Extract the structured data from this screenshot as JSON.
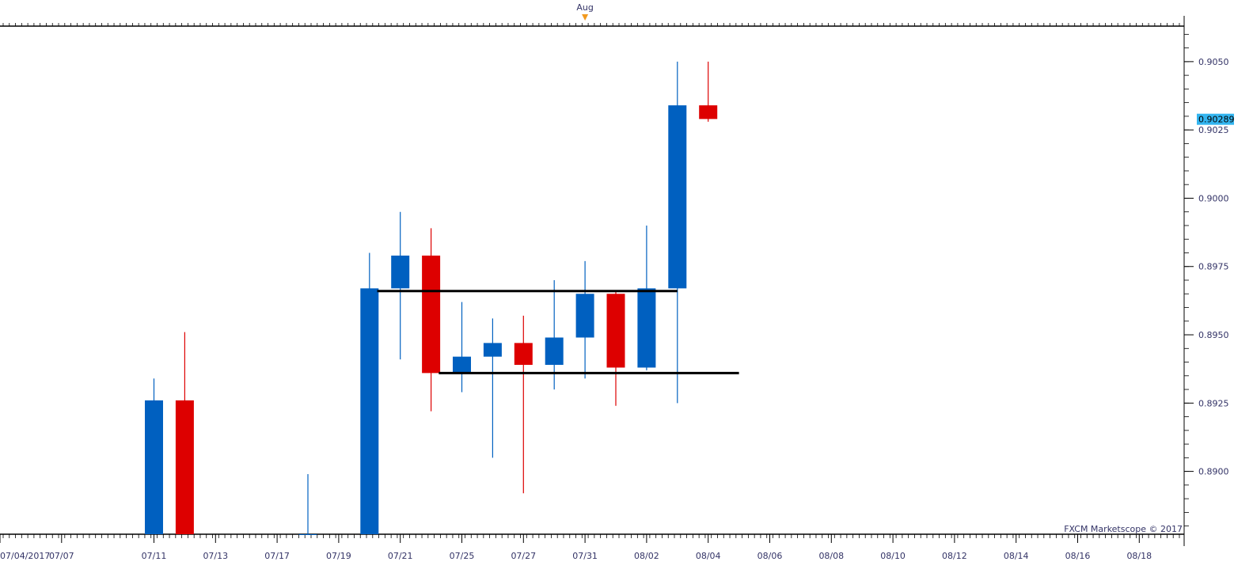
{
  "top_bar": {
    "month_marker": "Aug"
  },
  "price_label": "0.90289",
  "watermark": "FXCM Marketscope © 2017",
  "colors": {
    "bull": "#0060c0",
    "bear": "#dd0000",
    "price_label_bg": "#33b5f0",
    "axis_text": "#333366",
    "month_marker": "#f29a1f",
    "line": "#000000"
  },
  "chart_data": {
    "type": "candlestick",
    "instrument_note": "",
    "ylim": [
      0.8877,
      0.9063
    ],
    "y_ticks": [
      "0.9050",
      "0.9025",
      "0.9000",
      "0.8975",
      "0.8950",
      "0.8925",
      "0.8900"
    ],
    "x_labels": [
      "07/04/2017",
      "07/07",
      "07/11",
      "07/13",
      "07/17",
      "07/19",
      "07/21",
      "07/25",
      "07/27",
      "07/31",
      "08/02",
      "08/04",
      "08/06",
      "08/08",
      "08/10",
      "08/12",
      "08/14",
      "08/16",
      "08/18"
    ],
    "x_label_slots": [
      0,
      2,
      5,
      7,
      9,
      11,
      13,
      15,
      17,
      19,
      21,
      23,
      25,
      27,
      29,
      31,
      33,
      35,
      37
    ],
    "month_marker_slot": 19,
    "candles": [
      {
        "slot": 5,
        "open": 0.8877,
        "high": 0.8934,
        "low": 0.8877,
        "close": 0.8926,
        "color": "bull"
      },
      {
        "slot": 6,
        "open": 0.8926,
        "high": 0.8951,
        "low": 0.8877,
        "close": 0.8877,
        "color": "bear"
      },
      {
        "slot": 10,
        "open": 0.8877,
        "high": 0.8899,
        "low": 0.8877,
        "close": 0.8877,
        "color": "bull"
      },
      {
        "slot": 12,
        "open": 0.8877,
        "high": 0.898,
        "low": 0.8877,
        "close": 0.8967,
        "color": "bull"
      },
      {
        "slot": 13,
        "open": 0.8967,
        "high": 0.8995,
        "low": 0.8941,
        "close": 0.8979,
        "color": "bull"
      },
      {
        "slot": 14,
        "open": 0.8979,
        "high": 0.8989,
        "low": 0.8922,
        "close": 0.8936,
        "color": "bear"
      },
      {
        "slot": 15,
        "open": 0.8936,
        "high": 0.8962,
        "low": 0.8929,
        "close": 0.8942,
        "color": "bull"
      },
      {
        "slot": 16,
        "open": 0.8942,
        "high": 0.8956,
        "low": 0.8905,
        "close": 0.8947,
        "color": "bull"
      },
      {
        "slot": 17,
        "open": 0.8947,
        "high": 0.8957,
        "low": 0.8892,
        "close": 0.8939,
        "color": "bear"
      },
      {
        "slot": 18,
        "open": 0.8939,
        "high": 0.897,
        "low": 0.893,
        "close": 0.8949,
        "color": "bull"
      },
      {
        "slot": 19,
        "open": 0.8949,
        "high": 0.8977,
        "low": 0.8934,
        "close": 0.8965,
        "color": "bull"
      },
      {
        "slot": 20,
        "open": 0.8965,
        "high": 0.8966,
        "low": 0.8924,
        "close": 0.8938,
        "color": "bear"
      },
      {
        "slot": 21,
        "open": 0.8938,
        "high": 0.899,
        "low": 0.8937,
        "close": 0.8967,
        "color": "bull"
      },
      {
        "slot": 22,
        "open": 0.8967,
        "high": 0.905,
        "low": 0.8925,
        "close": 0.9034,
        "color": "bull"
      },
      {
        "slot": 23,
        "open": 0.9034,
        "high": 0.905,
        "low": 0.9028,
        "close": 0.9029,
        "color": "bear"
      }
    ],
    "lines": [
      {
        "name": "upper-range-line",
        "slot_start": 12.25,
        "slot_end": 22.0,
        "price": 0.8966
      },
      {
        "name": "lower-range-line",
        "slot_start": 14.25,
        "slot_end": 24.0,
        "price": 0.8936
      }
    ],
    "current_price": 0.90289
  }
}
